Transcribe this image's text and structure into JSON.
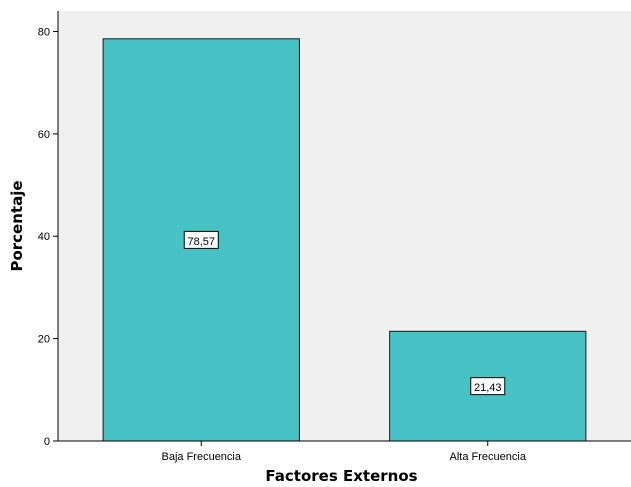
{
  "chart_data": {
    "type": "bar",
    "title": "",
    "xlabel": "Factores Externos",
    "ylabel": "Porcentaje",
    "categories": [
      "Baja Frecuencia",
      "Alta Frecuencia"
    ],
    "values": [
      78.57,
      21.43
    ],
    "data_labels": [
      "78,57",
      "21,43"
    ],
    "ylim": [
      0,
      84
    ],
    "yticks": [
      0,
      20,
      40,
      60,
      80
    ],
    "grid": false,
    "legend": "none",
    "colors": {
      "bar_fill": "#48c3c5",
      "bar_stroke": "#1a1a1a",
      "plot_background": "#f0f0f0",
      "axis": "#000000"
    }
  }
}
